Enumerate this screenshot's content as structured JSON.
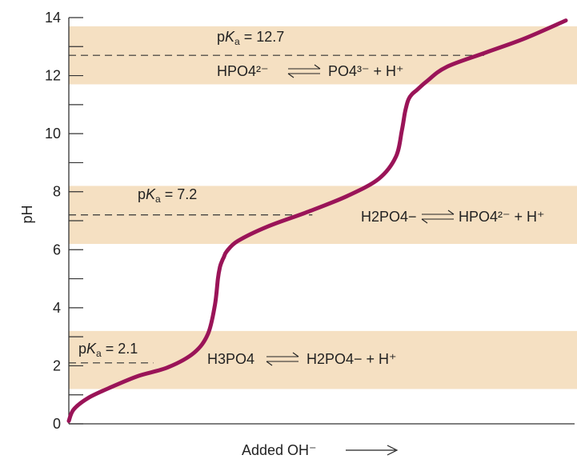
{
  "chart_data": {
    "type": "line",
    "title": "",
    "xlabel": "Added OH⁻",
    "ylabel": "pH",
    "ylim": [
      0,
      14
    ],
    "yticks_major": [
      0,
      2,
      4,
      6,
      8,
      10,
      12,
      14
    ],
    "yticks_minor": [
      1,
      3,
      5,
      7,
      9,
      11,
      13
    ],
    "grid": false,
    "legend": "none",
    "x_units": "relative amount of added OH⁻ (0 to 1)",
    "curve": {
      "color": "#9a1458",
      "x": [
        0.0,
        0.01,
        0.04,
        0.09,
        0.14,
        0.2,
        0.252,
        0.28,
        0.294,
        0.3,
        0.304,
        0.308,
        0.312,
        0.318,
        0.34,
        0.4,
        0.48,
        0.56,
        0.624,
        0.658,
        0.67,
        0.676,
        0.68,
        0.684,
        0.69,
        0.7,
        0.72,
        0.76,
        0.84,
        0.92,
        1.0
      ],
      "y": [
        0.1,
        0.5,
        0.9,
        1.3,
        1.65,
        1.95,
        2.45,
        3.1,
        4.1,
        5.0,
        5.4,
        5.6,
        5.75,
        5.95,
        6.3,
        6.8,
        7.3,
        7.85,
        8.45,
        9.2,
        10.1,
        10.7,
        11.0,
        11.2,
        11.35,
        11.5,
        11.8,
        12.3,
        12.8,
        13.3,
        13.9
      ]
    },
    "bands": [
      {
        "y_from": 1.2,
        "y_to": 3.2,
        "color": "#f5e0c2"
      },
      {
        "y_from": 6.2,
        "y_to": 8.2,
        "color": "#f5e0c2"
      },
      {
        "y_from": 11.7,
        "y_to": 13.7,
        "color": "#f5e0c2"
      }
    ],
    "pka_lines": [
      {
        "pH": 2.1,
        "x_end": 0.17
      },
      {
        "pH": 7.2,
        "x_end": 0.49
      },
      {
        "pH": 12.7,
        "x_end": 0.84
      }
    ]
  },
  "annotations": {
    "pka1_label": "2.1",
    "pka2_label": "7.2",
    "pka3_label": "12.7",
    "eq1": {
      "reactant": "H3PO4",
      "product": "H2PO4− + H⁺"
    },
    "eq2": {
      "reactant": "H2PO4−",
      "product": "HPO4²⁻ + H⁺"
    },
    "eq3": {
      "reactant": "HPO4²⁻",
      "product": "PO4³⁻ + H⁺"
    }
  }
}
